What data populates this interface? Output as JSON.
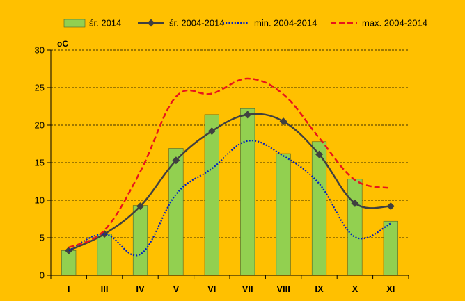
{
  "chart_data": {
    "type": "bar",
    "title": "",
    "xlabel": "",
    "ylabel": "",
    "unit_label": "oC",
    "categories": [
      "I",
      "III",
      "IV",
      "V",
      "VI",
      "VII",
      "VIII",
      "IX",
      "X",
      "XI"
    ],
    "ylim": [
      0,
      30
    ],
    "yticks": [
      "0",
      "5",
      "10",
      "15",
      "20",
      "25",
      "30"
    ],
    "grid": true,
    "legend_position": "top",
    "series": [
      {
        "name": "śr. 2014",
        "kind": "bar",
        "color": "#92D050",
        "values": [
          3.3,
          5.5,
          9.3,
          16.9,
          21.4,
          22.2,
          16.2,
          17.8,
          12.8,
          7.2
        ]
      },
      {
        "name": "śr. 2004-2014",
        "kind": "line",
        "style": "solid-diamond",
        "color": "#404040",
        "values": [
          3.3,
          5.5,
          9.2,
          15.3,
          19.2,
          21.4,
          20.5,
          16.1,
          9.6,
          9.2
        ]
      },
      {
        "name": "min. 2004-2014",
        "kind": "line",
        "style": "dotted",
        "color": "#0020C0",
        "values": [
          3.3,
          5.5,
          2.8,
          10.8,
          14.2,
          17.9,
          15.9,
          12.2,
          5.1,
          6.9
        ]
      },
      {
        "name": "max. 2004-2014",
        "kind": "line",
        "style": "dashed",
        "color": "#E8141C",
        "values": [
          3.7,
          6.0,
          13.8,
          23.8,
          24.2,
          26.2,
          24.1,
          18.3,
          12.7,
          11.6
        ]
      }
    ]
  }
}
